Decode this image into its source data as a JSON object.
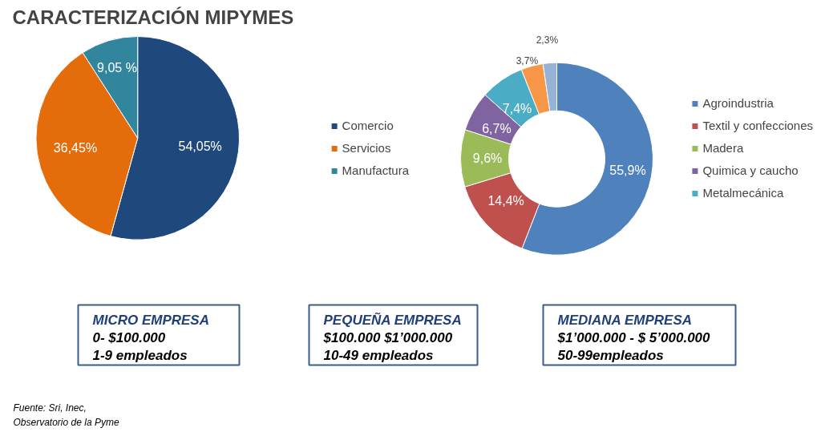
{
  "chart_data": [
    {
      "type": "pie",
      "title": "CARACTERIZACIÓN MIPYMES",
      "categories": [
        "Comercio",
        "Servicios",
        "Manufactura"
      ],
      "values": [
        54.05,
        36.45,
        9.05
      ],
      "colors": [
        "#1f497d",
        "#e46c0a",
        "#31859c"
      ],
      "value_labels": [
        "54,05%",
        "36,45%",
        "9,05 %"
      ],
      "legend": "right"
    },
    {
      "type": "donut",
      "categories": [
        "Agroindustria",
        "Textil y confecciones",
        "Madera",
        "Quimica y caucho",
        "Metalmecánica",
        null,
        null
      ],
      "values": [
        55.9,
        14.4,
        9.6,
        6.7,
        7.4,
        3.7,
        2.3
      ],
      "colors": [
        "#4f81bd",
        "#c0504d",
        "#9bbb59",
        "#8064a2",
        "#4bacc6",
        "#f79646",
        "#95b3d7"
      ],
      "value_labels": [
        "55,9%",
        "14,4%",
        "9,6%",
        "6,7%",
        "7,4%",
        "3,7%",
        "2,3%"
      ],
      "legend": "right"
    },
    {
      "type": "other",
      "annotations": [
        "MICRO EMPRESA\n0- $100.000\n1-9 empleados",
        "PEQUEÑA EMPRESA\n$100.000 $1’000.000\n10-49 empleados",
        "MEDIANA EMPRESA\n$1’000.000  -  $ 5’000.000\n50-99empleados",
        "Fuente: Sri, Inec,\nObservatorio de la Pyme"
      ]
    }
  ]
}
